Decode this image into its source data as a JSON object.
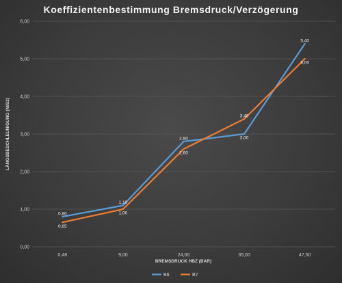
{
  "chart_data": {
    "type": "line",
    "title": "Koeffizientenbestimmung Bremsdruck/Verzögerung",
    "xlabel": "BREMSDRUCK HBZ (BAR)",
    "ylabel": "LÄNGSBESCHLEUNIGUNG (M/S2)",
    "categories": [
      "0,48",
      "9,00",
      "24,00",
      "35,00",
      "47,50"
    ],
    "ylim": [
      0,
      6
    ],
    "yticks": [
      "0,00",
      "1,00",
      "2,00",
      "3,00",
      "4,00",
      "5,00",
      "6,00"
    ],
    "grid": true,
    "legend_position": "bottom",
    "series": [
      {
        "name": "B6",
        "color": "#5b9bd5",
        "values": [
          0.8,
          1.1,
          2.8,
          3.0,
          5.4
        ],
        "labels": [
          "0,80",
          "1,10",
          "2,80",
          "3,00",
          "5,40"
        ]
      },
      {
        "name": "B7",
        "color": "#ed7d31",
        "values": [
          0.65,
          1.0,
          2.6,
          3.4,
          5.0
        ],
        "labels": [
          "0,65",
          "1,00",
          "2,60",
          "3,40",
          "5,00"
        ]
      }
    ]
  }
}
